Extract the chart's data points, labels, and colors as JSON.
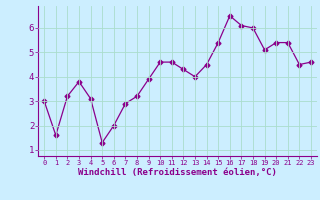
{
  "x": [
    0,
    1,
    2,
    3,
    4,
    5,
    6,
    7,
    8,
    9,
    10,
    11,
    12,
    13,
    14,
    15,
    16,
    17,
    18,
    19,
    20,
    21,
    22,
    23
  ],
  "y": [
    3.0,
    1.6,
    3.2,
    3.8,
    3.1,
    1.3,
    2.0,
    2.9,
    3.2,
    3.9,
    4.6,
    4.6,
    4.3,
    4.0,
    4.5,
    5.4,
    6.5,
    6.1,
    6.0,
    5.1,
    5.4,
    5.4,
    4.5,
    4.6
  ],
  "line_color": "#8b008b",
  "marker": "D",
  "marker_size": 2.5,
  "bg_color": "#cceeff",
  "grid_color": "#aaddcc",
  "xlabel": "Windchill (Refroidissement éolien,°C)",
  "xlabel_color": "#8b008b",
  "tick_color": "#8b008b",
  "ylim": [
    0.75,
    6.9
  ],
  "xlim": [
    -0.5,
    23.5
  ],
  "yticks": [
    1,
    2,
    3,
    4,
    5,
    6
  ],
  "xticks": [
    0,
    1,
    2,
    3,
    4,
    5,
    6,
    7,
    8,
    9,
    10,
    11,
    12,
    13,
    14,
    15,
    16,
    17,
    18,
    19,
    20,
    21,
    22,
    23
  ]
}
